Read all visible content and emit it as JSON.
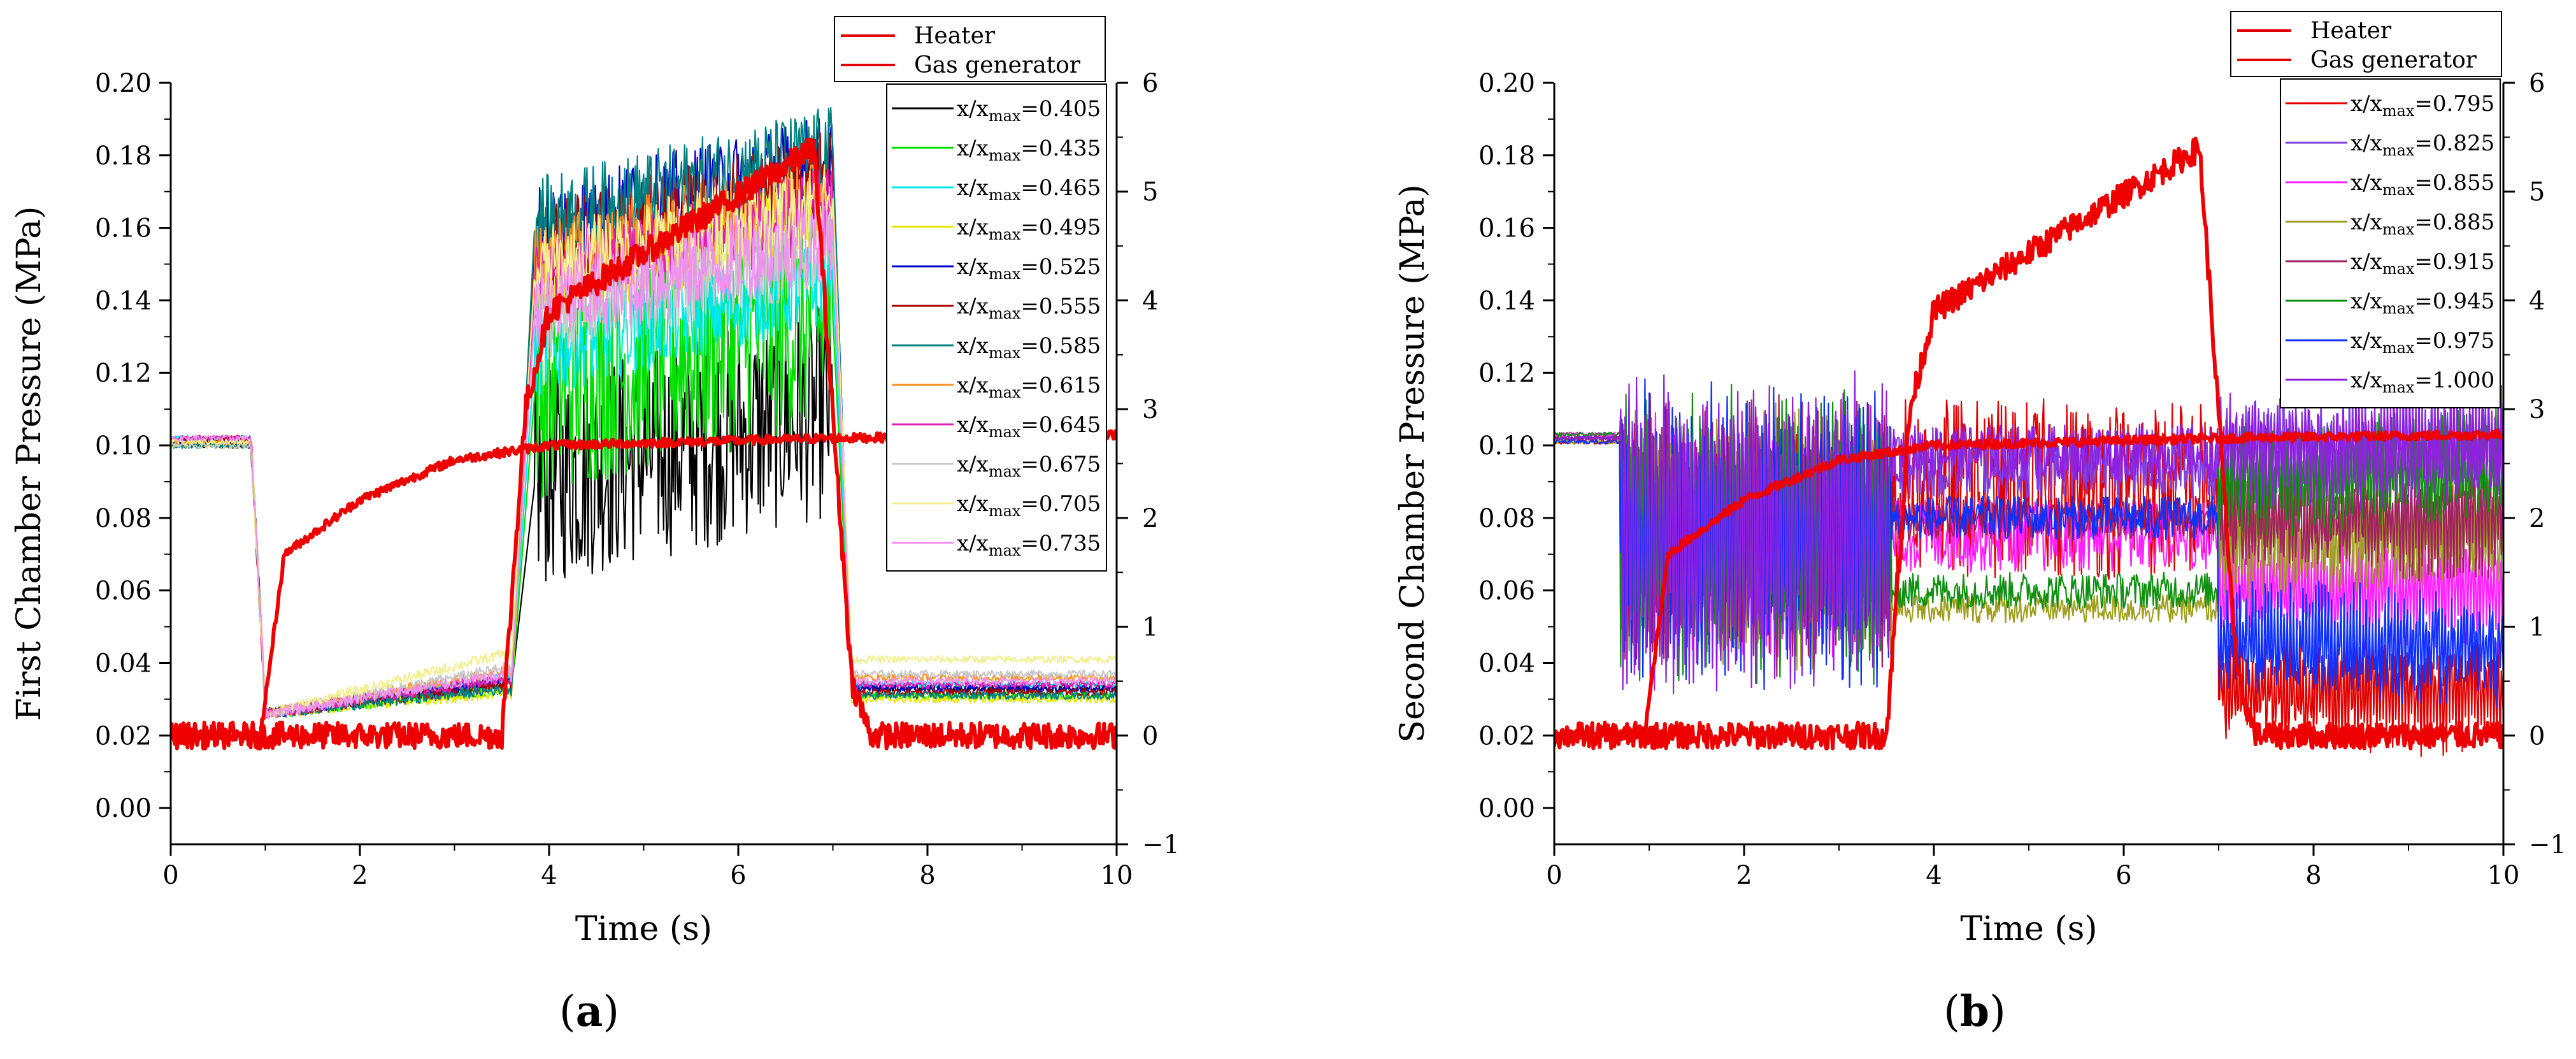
{
  "chart_data": [
    {
      "type": "line",
      "panel_label": "a",
      "xlabel": "Time (s)",
      "ylabel": "First Chamber Pressure (MPa)",
      "xlim": [
        0,
        10
      ],
      "ylim": [
        -0.01,
        0.2
      ],
      "y2lim": [
        -1,
        6
      ],
      "x_ticks": [
        0,
        2,
        4,
        6,
        8,
        10
      ],
      "y_ticks": [
        0.0,
        0.02,
        0.04,
        0.06,
        0.08,
        0.1,
        0.12,
        0.14,
        0.16,
        0.18,
        0.2
      ],
      "y_tick_labels": [
        "0.00",
        "0.02",
        "0.04",
        "0.06",
        "0.08",
        "0.10",
        "0.12",
        "0.14",
        "0.16",
        "0.18",
        "0.20"
      ],
      "y2_ticks": [
        -1,
        0,
        1,
        2,
        3,
        4,
        5,
        6
      ],
      "legend_top": [
        {
          "name": "Heater",
          "color": "#e00000"
        },
        {
          "name": "Gas generator",
          "color": "#e00000"
        }
      ],
      "legend_series": [
        {
          "value": "0.405",
          "color": "#000000"
        },
        {
          "value": "0.435",
          "color": "#00e000"
        },
        {
          "value": "0.465",
          "color": "#00e8e8"
        },
        {
          "value": "0.495",
          "color": "#e8e800"
        },
        {
          "value": "0.525",
          "color": "#0000cc"
        },
        {
          "value": "0.555",
          "color": "#aa0000"
        },
        {
          "value": "0.585",
          "color": "#008080"
        },
        {
          "value": "0.615",
          "color": "#ff9020"
        },
        {
          "value": "0.645",
          "color": "#e020b0"
        },
        {
          "value": "0.675",
          "color": "#c8c8c8"
        },
        {
          "value": "0.705",
          "color": "#f0f090"
        },
        {
          "value": "0.735",
          "color": "#f090f0"
        }
      ],
      "series_summary": {
        "gas_generator_MPa": {
          "t": [
            0,
            0.95,
            1.2,
            2.0,
            3.0,
            4.0,
            7.0,
            10.0
          ],
          "y": [
            0.02,
            0.02,
            0.07,
            0.085,
            0.096,
            0.1,
            0.102,
            0.103
          ]
        },
        "heater_right_axis": {
          "t": [
            0,
            3.5,
            3.75,
            4.0,
            6.8,
            7.2,
            7.4,
            10.0
          ],
          "y": [
            0.0,
            0.0,
            3.0,
            3.9,
            5.4,
            0.5,
            0.0,
            0.0
          ]
        },
        "chamber_MPa": {
          "t": [
            0,
            0.85,
            1.0,
            3.6,
            3.85,
            4.2,
            7.0,
            7.2,
            10.0
          ],
          "y": [
            0.1,
            0.1,
            0.028,
            0.035,
            0.16,
            0.17,
            0.175,
            0.035,
            0.035
          ]
        }
      }
    },
    {
      "type": "line",
      "panel_label": "b",
      "xlabel": "Time (s)",
      "ylabel": "Second Chamber Pressure (MPa)",
      "xlim": [
        0,
        10
      ],
      "ylim": [
        -0.01,
        0.2
      ],
      "y2lim": [
        -1,
        6
      ],
      "x_ticks": [
        0,
        2,
        4,
        6,
        8,
        10
      ],
      "y_ticks": [
        0.0,
        0.02,
        0.04,
        0.06,
        0.08,
        0.1,
        0.12,
        0.14,
        0.16,
        0.18,
        0.2
      ],
      "y_tick_labels": [
        "0.00",
        "0.02",
        "0.04",
        "0.06",
        "0.08",
        "0.10",
        "0.12",
        "0.14",
        "0.16",
        "0.18",
        "0.20"
      ],
      "y2_ticks": [
        -1,
        0,
        1,
        2,
        3,
        4,
        5,
        6
      ],
      "legend_top": [
        {
          "name": "Heater",
          "color": "#e00000"
        },
        {
          "name": "Gas generator",
          "color": "#e00000"
        }
      ],
      "legend_series": [
        {
          "value": "0.795",
          "color": "#e00000"
        },
        {
          "value": "0.825",
          "color": "#8040e0"
        },
        {
          "value": "0.855",
          "color": "#ff20ff"
        },
        {
          "value": "0.885",
          "color": "#a0a020"
        },
        {
          "value": "0.915",
          "color": "#a02060"
        },
        {
          "value": "0.945",
          "color": "#109010"
        },
        {
          "value": "0.975",
          "color": "#1030ff"
        },
        {
          "value": "1.000",
          "color": "#9020e0"
        }
      ],
      "series_summary": {
        "gas_generator_MPa": {
          "t": [
            0,
            0.95,
            1.2,
            2.0,
            3.0,
            4.0,
            7.0,
            10.0
          ],
          "y": [
            0.02,
            0.02,
            0.07,
            0.085,
            0.096,
            0.1,
            0.102,
            0.103
          ]
        },
        "heater_right_axis": {
          "t": [
            0,
            3.5,
            3.75,
            4.0,
            6.8,
            7.2,
            7.4,
            10.0
          ],
          "y": [
            0.0,
            0.0,
            3.0,
            3.9,
            5.4,
            0.5,
            0.0,
            0.0
          ]
        }
      }
    }
  ],
  "legend_prefix": "x/x",
  "legend_sub": "max",
  "legend_eq": "="
}
